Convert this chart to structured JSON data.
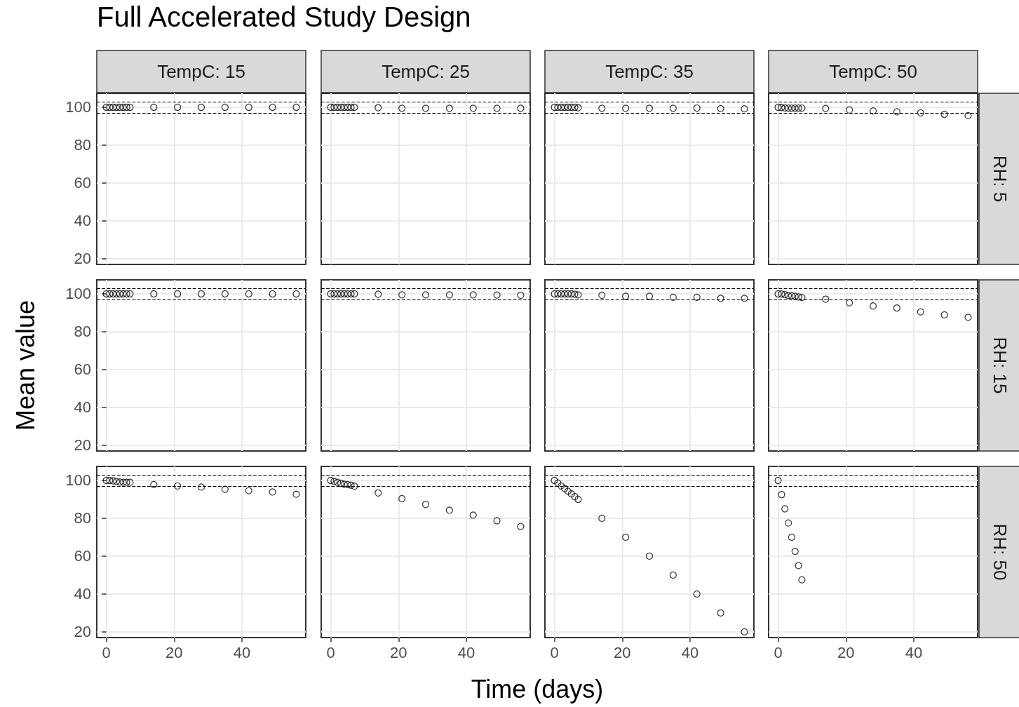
{
  "chart_data": [
    {
      "type": "scatter",
      "title": "Full Accelerated Study Design",
      "annotations": [
        "TempC: 15"
      ],
      "x": [
        0,
        1,
        2,
        3,
        4,
        5,
        6,
        7,
        14,
        21,
        28,
        35,
        42,
        49,
        56
      ],
      "series": [
        {
          "color": "#000000",
          "values": [
            100,
            100,
            100,
            100,
            100,
            100,
            100,
            100,
            100,
            100,
            100,
            100,
            100,
            100,
            100
          ]
        }
      ],
      "xlim": [
        -2.8,
        58.8
      ],
      "ylim": [
        17,
        107.4
      ],
      "xticks": [
        0,
        20,
        40
      ],
      "yticks": [
        20,
        40,
        60,
        80,
        100
      ],
      "grid": true,
      "marker": "circle",
      "tick_labels": "y",
      "ref_lines": [
        {
          "axis": "y",
          "value": 97,
          "color": "#000000",
          "line_style": "dashed"
        },
        {
          "axis": "y",
          "value": 103,
          "color": "#000000",
          "line_style": "dashed"
        }
      ]
    },
    {
      "type": "scatter",
      "annotations": [
        "TempC: 25"
      ],
      "x": [
        0,
        1,
        2,
        3,
        4,
        5,
        6,
        7,
        14,
        21,
        28,
        35,
        42,
        49,
        56
      ],
      "series": [
        {
          "color": "#000000",
          "values": [
            100,
            100,
            100,
            100,
            100,
            100,
            100,
            100,
            99.8,
            99.5,
            99.5,
            99.5,
            99.5,
            99.5,
            99.5
          ]
        }
      ],
      "xlim": [
        -2.8,
        58.8
      ],
      "ylim": [
        17,
        107.4
      ],
      "xticks": [
        0,
        20,
        40
      ],
      "yticks": [
        20,
        40,
        60,
        80,
        100
      ],
      "grid": true,
      "marker": "circle",
      "tick_labels": false,
      "ref_lines": [
        {
          "axis": "y",
          "value": 97,
          "color": "#000000",
          "line_style": "dashed"
        },
        {
          "axis": "y",
          "value": 103,
          "color": "#000000",
          "line_style": "dashed"
        }
      ]
    },
    {
      "type": "scatter",
      "annotations": [
        "TempC: 35"
      ],
      "x": [
        0,
        1,
        2,
        3,
        4,
        5,
        6,
        7,
        14,
        21,
        28,
        35,
        42,
        49,
        56
      ],
      "series": [
        {
          "color": "#000000",
          "values": [
            100,
            100,
            100,
            100,
            100,
            100,
            100,
            99.8,
            99.5,
            99.5,
            99.5,
            99.5,
            99.6,
            99.3,
            99.2
          ]
        }
      ],
      "xlim": [
        -2.8,
        58.8
      ],
      "ylim": [
        17,
        107.4
      ],
      "xticks": [
        0,
        20,
        40
      ],
      "yticks": [
        20,
        40,
        60,
        80,
        100
      ],
      "grid": true,
      "marker": "circle",
      "tick_labels": false,
      "ref_lines": [
        {
          "axis": "y",
          "value": 97,
          "color": "#000000",
          "line_style": "dashed"
        },
        {
          "axis": "y",
          "value": 103,
          "color": "#000000",
          "line_style": "dashed"
        }
      ]
    },
    {
      "type": "scatter",
      "annotations": [
        "TempC: 50",
        "RH: 5"
      ],
      "x": [
        0,
        1,
        2,
        3,
        4,
        5,
        6,
        7,
        14,
        21,
        28,
        35,
        42,
        49,
        56
      ],
      "series": [
        {
          "color": "#000000",
          "values": [
            100,
            99.9,
            99.7,
            99.6,
            99.6,
            99.6,
            99.6,
            99.6,
            99.4,
            98.6,
            98.1,
            97.6,
            97.1,
            96.3,
            95.6
          ]
        }
      ],
      "xlim": [
        -2.8,
        58.8
      ],
      "ylim": [
        17,
        107.4
      ],
      "xticks": [
        0,
        20,
        40
      ],
      "yticks": [
        20,
        40,
        60,
        80,
        100
      ],
      "grid": true,
      "marker": "circle",
      "tick_labels": false,
      "ref_lines": [
        {
          "axis": "y",
          "value": 97,
          "color": "#000000",
          "line_style": "dashed"
        },
        {
          "axis": "y",
          "value": 103,
          "color": "#000000",
          "line_style": "dashed"
        }
      ]
    },
    {
      "type": "scatter",
      "ylabel": "Mean value",
      "x": [
        0,
        1,
        2,
        3,
        4,
        5,
        6,
        7,
        14,
        21,
        28,
        35,
        42,
        49,
        56
      ],
      "series": [
        {
          "color": "#000000",
          "values": [
            100,
            100,
            100,
            100,
            100,
            100,
            100,
            100,
            100,
            100,
            100,
            100,
            100,
            100,
            100
          ]
        }
      ],
      "xlim": [
        -2.8,
        58.8
      ],
      "ylim": [
        17,
        107.4
      ],
      "xticks": [
        0,
        20,
        40
      ],
      "yticks": [
        20,
        40,
        60,
        80,
        100
      ],
      "grid": true,
      "marker": "circle",
      "tick_labels": "y",
      "ref_lines": [
        {
          "axis": "y",
          "value": 97,
          "color": "#000000",
          "line_style": "dashed"
        },
        {
          "axis": "y",
          "value": 103,
          "color": "#000000",
          "line_style": "dashed"
        }
      ]
    },
    {
      "type": "scatter",
      "x": [
        0,
        1,
        2,
        3,
        4,
        5,
        6,
        7,
        14,
        21,
        28,
        35,
        42,
        49,
        56
      ],
      "series": [
        {
          "color": "#000000",
          "values": [
            100,
            100,
            100,
            100,
            100,
            100,
            100,
            100,
            99.8,
            99.5,
            99.5,
            99.5,
            99.5,
            99.4,
            99.3
          ]
        }
      ],
      "xlim": [
        -2.8,
        58.8
      ],
      "ylim": [
        17,
        107.4
      ],
      "xticks": [
        0,
        20,
        40
      ],
      "yticks": [
        20,
        40,
        60,
        80,
        100
      ],
      "grid": true,
      "marker": "circle",
      "tick_labels": false,
      "ref_lines": [
        {
          "axis": "y",
          "value": 97,
          "color": "#000000",
          "line_style": "dashed"
        },
        {
          "axis": "y",
          "value": 103,
          "color": "#000000",
          "line_style": "dashed"
        }
      ]
    },
    {
      "type": "scatter",
      "x": [
        0,
        1,
        2,
        3,
        4,
        5,
        6,
        7,
        14,
        21,
        28,
        35,
        42,
        49,
        56
      ],
      "series": [
        {
          "color": "#000000",
          "values": [
            100,
            100,
            100,
            100,
            100,
            100,
            99.8,
            99.5,
            99.3,
            98.7,
            98.7,
            98.2,
            98.2,
            97.6,
            97.6
          ]
        }
      ],
      "xlim": [
        -2.8,
        58.8
      ],
      "ylim": [
        17,
        107.4
      ],
      "xticks": [
        0,
        20,
        40
      ],
      "yticks": [
        20,
        40,
        60,
        80,
        100
      ],
      "grid": true,
      "marker": "circle",
      "tick_labels": false,
      "ref_lines": [
        {
          "axis": "y",
          "value": 97,
          "color": "#000000",
          "line_style": "dashed"
        },
        {
          "axis": "y",
          "value": 103,
          "color": "#000000",
          "line_style": "dashed"
        }
      ]
    },
    {
      "type": "scatter",
      "annotations": [
        "RH: 15"
      ],
      "x": [
        0,
        1,
        2,
        3,
        4,
        5,
        6,
        7,
        14,
        21,
        28,
        35,
        42,
        49,
        56
      ],
      "series": [
        {
          "color": "#000000",
          "values": [
            100,
            99.9,
            99.6,
            99.1,
            99,
            98.7,
            98.4,
            98.1,
            97.2,
            95.3,
            93.6,
            92.5,
            90.5,
            88.9,
            87.6
          ]
        }
      ],
      "xlim": [
        -2.8,
        58.8
      ],
      "ylim": [
        17,
        107.4
      ],
      "xticks": [
        0,
        20,
        40
      ],
      "yticks": [
        20,
        40,
        60,
        80,
        100
      ],
      "grid": true,
      "marker": "circle",
      "tick_labels": false,
      "ref_lines": [
        {
          "axis": "y",
          "value": 97,
          "color": "#000000",
          "line_style": "dashed"
        },
        {
          "axis": "y",
          "value": 103,
          "color": "#000000",
          "line_style": "dashed"
        }
      ]
    },
    {
      "type": "scatter",
      "x": [
        0,
        1,
        2,
        3,
        4,
        5,
        6,
        7,
        14,
        21,
        28,
        35,
        42,
        49,
        56
      ],
      "series": [
        {
          "color": "#000000",
          "values": [
            100,
            100,
            99.8,
            99.5,
            99.2,
            99,
            99,
            99,
            97.8,
            97.1,
            96.5,
            95.3,
            94.6,
            93.9,
            92.7
          ]
        }
      ],
      "xlim": [
        -2.8,
        58.8
      ],
      "ylim": [
        17,
        107.4
      ],
      "xticks": [
        0,
        20,
        40
      ],
      "yticks": [
        20,
        40,
        60,
        80,
        100
      ],
      "grid": true,
      "marker": "circle",
      "ref_lines": [
        {
          "axis": "y",
          "value": 97,
          "color": "#000000",
          "line_style": "dashed"
        },
        {
          "axis": "y",
          "value": 103,
          "color": "#000000",
          "line_style": "dashed"
        }
      ]
    },
    {
      "type": "scatter",
      "xlabel": "Time (days)",
      "x": [
        0,
        1,
        2,
        3,
        4,
        5,
        6,
        7,
        14,
        21,
        28,
        35,
        42,
        49,
        56
      ],
      "series": [
        {
          "color": "#000000",
          "values": [
            100,
            99.5,
            99,
            98.5,
            98,
            97.8,
            97.5,
            97,
            93.4,
            90.4,
            87.3,
            84.3,
            81.7,
            78.7,
            75.7
          ]
        }
      ],
      "xlim": [
        -2.8,
        58.8
      ],
      "ylim": [
        17,
        107.4
      ],
      "xticks": [
        0,
        20,
        40
      ],
      "yticks": [
        20,
        40,
        60,
        80,
        100
      ],
      "grid": true,
      "marker": "circle",
      "tick_labels": "x",
      "ref_lines": [
        {
          "axis": "y",
          "value": 97,
          "color": "#000000",
          "line_style": "dashed"
        },
        {
          "axis": "y",
          "value": 103,
          "color": "#000000",
          "line_style": "dashed"
        }
      ]
    },
    {
      "type": "scatter",
      "x": [
        0,
        1,
        2,
        3,
        4,
        5,
        6,
        7,
        14,
        21,
        28,
        35,
        42,
        49,
        56
      ],
      "series": [
        {
          "color": "#000000",
          "values": [
            100,
            98.6,
            97.1,
            95.7,
            94.3,
            92.9,
            91.4,
            90,
            80,
            70,
            60,
            50,
            40,
            30,
            20
          ]
        }
      ],
      "xlim": [
        -2.8,
        58.8
      ],
      "ylim": [
        17,
        107.4
      ],
      "xticks": [
        0,
        20,
        40
      ],
      "yticks": [
        20,
        40,
        60,
        80,
        100
      ],
      "grid": true,
      "marker": "circle",
      "tick_labels": "x",
      "ref_lines": [
        {
          "axis": "y",
          "value": 97,
          "color": "#000000",
          "line_style": "dashed"
        },
        {
          "axis": "y",
          "value": 103,
          "color": "#000000",
          "line_style": "dashed"
        }
      ]
    },
    {
      "type": "scatter",
      "annotations": [
        "RH: 50"
      ],
      "x": [
        0,
        1,
        2,
        3,
        4,
        5,
        6,
        7
      ],
      "series": [
        {
          "color": "#000000",
          "values": [
            100,
            92.5,
            85,
            77.5,
            70,
            62.5,
            55,
            47.5
          ]
        }
      ],
      "xlim": [
        -2.8,
        58.8
      ],
      "ylim": [
        17,
        107.4
      ],
      "xticks": [
        0,
        20,
        40
      ],
      "yticks": [
        20,
        40,
        60,
        80,
        100
      ],
      "grid": true,
      "marker": "circle",
      "tick_labels": "x",
      "ref_lines": [
        {
          "axis": "y",
          "value": 97,
          "color": "#000000",
          "line_style": "dashed"
        },
        {
          "axis": "y",
          "value": 103,
          "color": "#000000",
          "line_style": "dashed"
        }
      ]
    }
  ]
}
